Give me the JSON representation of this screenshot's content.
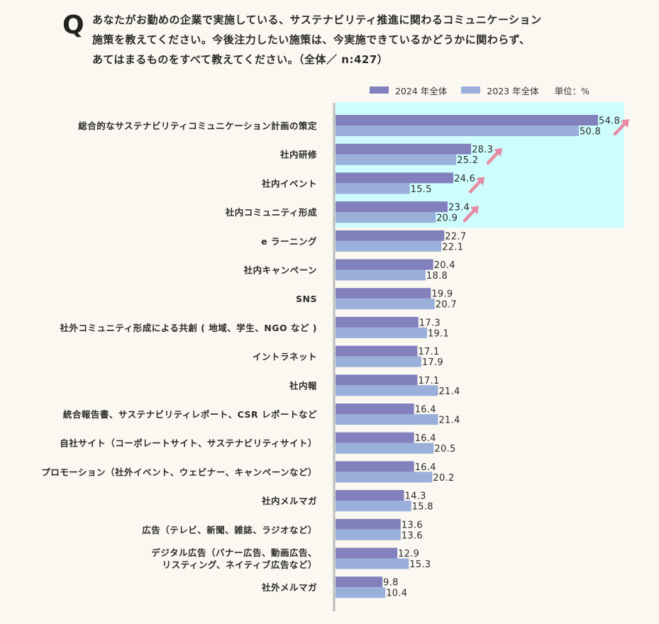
{
  "question": {
    "mark": "Q",
    "lines": [
      "あなたがお勤めの企業で実施している、サステナビリティ推進に関わるコミュニケーション",
      "施策を教えてください。今後注力したい施策は、今実施できているかどうかに関わらず、",
      "あてはまるものをすべて教えてください。（全体／ n:427）"
    ]
  },
  "legend": {
    "unit_label": "単位：%"
  },
  "colors": {
    "series_2024": "#8281bd",
    "series_2023": "#9aafd9",
    "highlight_bg": "#cffcfc",
    "axis": "#bbbbbb",
    "arrow": "#e68aa3"
  },
  "chart_data": {
    "type": "bar",
    "orientation": "horizontal",
    "unit": "%",
    "categories": [
      [
        "総合的なサステナビリティコミュニケーション計画の策定"
      ],
      [
        "社内研修"
      ],
      [
        "社内イベント"
      ],
      [
        "社内コミュニティ形成"
      ],
      [
        "e ラーニング"
      ],
      [
        "社内キャンペーン"
      ],
      [
        "SNS"
      ],
      [
        "社外コミュニティ形成による共創 ( 地域、学生、NGO など )"
      ],
      [
        "イントラネット"
      ],
      [
        "社内報"
      ],
      [
        "統合報告書、サステナビリティレポート、CSR レポートなど"
      ],
      [
        "自社サイト（コーポレートサイト、サステナビリティサイト）"
      ],
      [
        "プロモーション（社外イベント、ウェビナー、キャンペーンなど）"
      ],
      [
        "社内メルマガ"
      ],
      [
        "広告（テレビ、新聞、雑誌、ラジオなど）"
      ],
      [
        "デジタル広告（バナー広告、動画広告、",
        "リスティング、ネイティブ広告など）"
      ],
      [
        "社外メルマガ"
      ]
    ],
    "series": [
      {
        "name": "2024 年全体",
        "values": [
          54.8,
          28.3,
          24.6,
          23.4,
          22.7,
          20.4,
          19.9,
          17.3,
          17.1,
          17.1,
          16.4,
          16.4,
          16.4,
          14.3,
          13.6,
          12.9,
          9.8
        ]
      },
      {
        "name": "2023 年全体",
        "values": [
          50.8,
          25.2,
          15.5,
          20.9,
          22.1,
          18.8,
          20.7,
          19.1,
          17.9,
          21.4,
          21.4,
          20.5,
          20.2,
          15.8,
          13.6,
          15.3,
          10.4
        ]
      }
    ],
    "highlighted_categories": [
      0,
      1,
      2,
      3
    ],
    "increase_arrows": [
      0,
      1,
      2,
      3
    ],
    "xlim": [
      0,
      58
    ]
  }
}
